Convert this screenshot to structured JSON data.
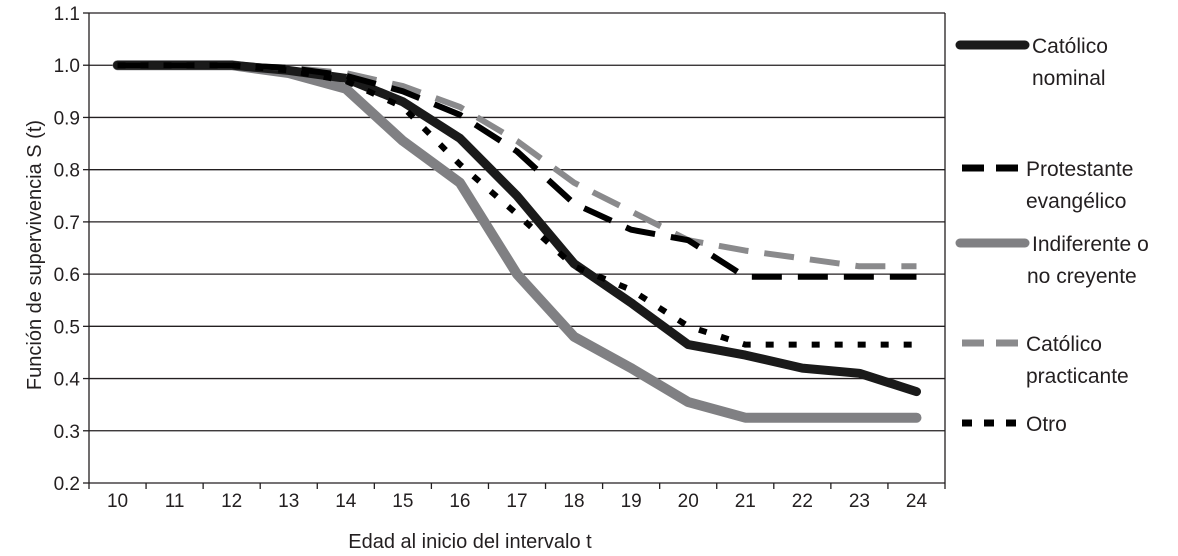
{
  "chart_data": {
    "type": "line",
    "title": "",
    "xlabel": "Edad al inicio del intervalo t",
    "ylabel": "Función de supervivencia S (t)",
    "ylim": [
      0.2,
      1.1
    ],
    "yticks": [
      "0.2",
      "0.3",
      "0.4",
      "0.5",
      "0.6",
      "0.7",
      "0.8",
      "0.9",
      "1.0",
      "1.1"
    ],
    "grid": true,
    "legend_position": "right",
    "categories": [
      "10",
      "11",
      "12",
      "13",
      "14",
      "15",
      "16",
      "17",
      "18",
      "19",
      "20",
      "21",
      "22",
      "23",
      "24"
    ],
    "series": [
      {
        "name": "Católico nominal",
        "legend_lines": [
          "Católico",
          "nominal"
        ],
        "style": "solid",
        "color": "#1a1a1a",
        "width": 9,
        "values": [
          1.0,
          1.0,
          1.0,
          0.99,
          0.975,
          0.93,
          0.86,
          0.75,
          0.62,
          0.545,
          0.465,
          0.445,
          0.42,
          0.41,
          0.375
        ]
      },
      {
        "name": "Protestante evangélico",
        "legend_lines": [
          "Protestante",
          "evangélico"
        ],
        "style": "dashed",
        "color": "#000000",
        "width": 6,
        "values": [
          1.0,
          1.0,
          1.0,
          0.995,
          0.98,
          0.95,
          0.905,
          0.835,
          0.735,
          0.685,
          0.665,
          0.595,
          0.595,
          0.595,
          0.595
        ]
      },
      {
        "name": "Indiferente o no creyente",
        "legend_lines": [
          "Indiferente o",
          "no creyente"
        ],
        "style": "solid",
        "color": "#808083",
        "width": 10,
        "values": [
          1.0,
          1.0,
          1.0,
          0.985,
          0.955,
          0.855,
          0.775,
          0.6,
          0.48,
          0.42,
          0.355,
          0.325,
          0.325,
          0.325,
          0.325
        ]
      },
      {
        "name": "Católico practicante",
        "legend_lines": [
          "Católico",
          "practicante"
        ],
        "style": "dashed",
        "color": "#8a8a8c",
        "width": 6,
        "values": [
          1.0,
          1.0,
          1.0,
          0.995,
          0.985,
          0.96,
          0.92,
          0.855,
          0.775,
          0.72,
          0.665,
          0.645,
          0.63,
          0.615,
          0.615
        ]
      },
      {
        "name": "Otro",
        "legend_lines": [
          "Otro"
        ],
        "style": "dotted",
        "color": "#000000",
        "width": 6,
        "values": [
          1.0,
          1.0,
          1.0,
          0.99,
          0.97,
          0.92,
          0.81,
          0.715,
          0.615,
          0.57,
          0.5,
          0.465,
          0.465,
          0.465,
          0.465
        ]
      }
    ]
  }
}
